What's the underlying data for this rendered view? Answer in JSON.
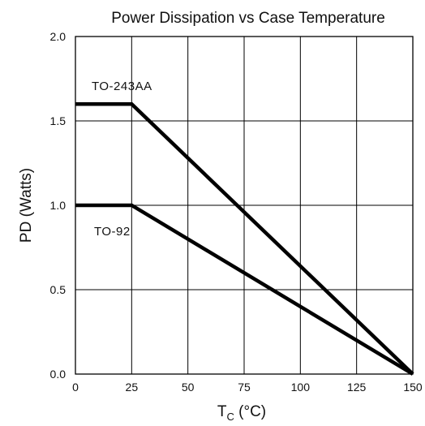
{
  "chart_data": {
    "type": "line",
    "title": "Power Dissipation vs Case Temperature",
    "xlabel_main": "T",
    "xlabel_sub": "C",
    "xlabel_unit": " (°C)",
    "ylabel": "PD (Watts)",
    "xlim": [
      0,
      150
    ],
    "ylim": [
      0,
      2.0
    ],
    "x_ticks": [
      "0",
      "25",
      "50",
      "75",
      "100",
      "125",
      "150"
    ],
    "y_ticks": [
      "0.0",
      "0.5",
      "1.0",
      "1.5",
      "2.0"
    ],
    "grid": true,
    "series": [
      {
        "name": "TO-243AA",
        "x": [
          0,
          25,
          150
        ],
        "y": [
          1.6,
          1.6,
          0.0
        ]
      },
      {
        "name": "TO-92",
        "x": [
          0,
          25,
          150
        ],
        "y": [
          1.0,
          1.0,
          0.0
        ]
      }
    ]
  }
}
